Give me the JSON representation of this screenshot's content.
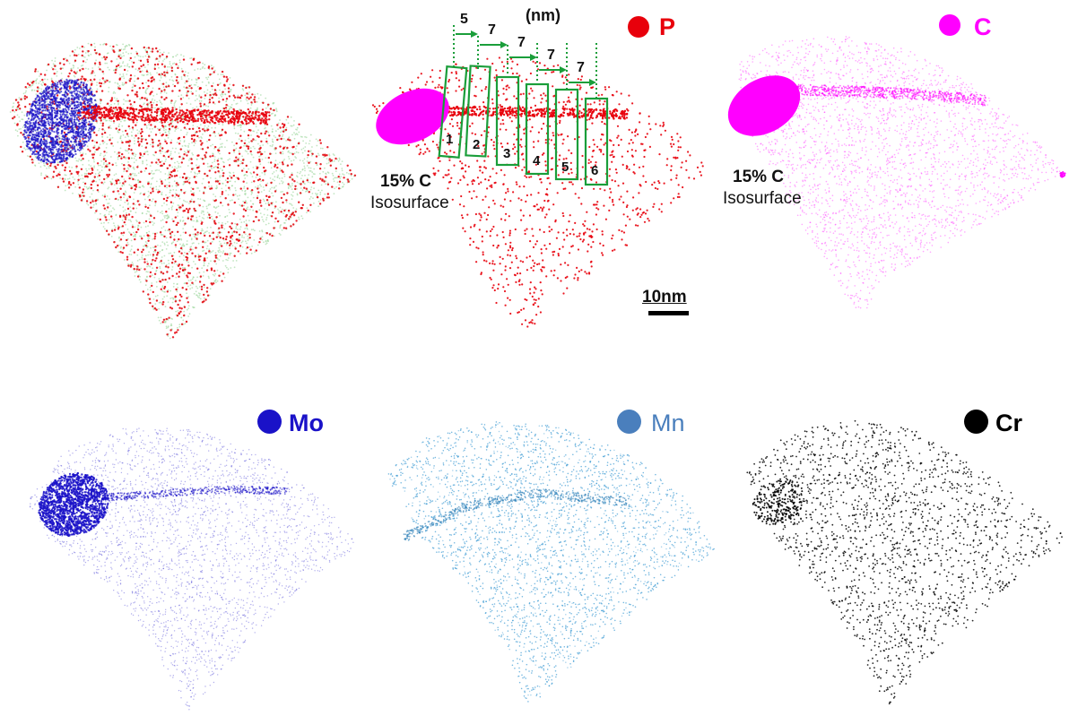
{
  "panels": [
    {
      "id": "overlay",
      "elements": [
        "P",
        "C",
        "Mo",
        "Mn",
        "Cr"
      ]
    },
    {
      "id": "P",
      "legend": "P",
      "color": "#e8000b",
      "isosurface": {
        "concentration": "15% C",
        "label": "Isosurface",
        "color": "#ff00ff"
      }
    },
    {
      "id": "C",
      "legend": "C",
      "color": "#ff00ff",
      "isosurface": {
        "concentration": "15% C",
        "label": "Isosurface",
        "color": "#ff00ff"
      }
    },
    {
      "id": "Mo",
      "legend": "Mo",
      "color": "#1a12c8"
    },
    {
      "id": "Mn",
      "legend": "Mn",
      "color": "#4a7fbd"
    },
    {
      "id": "Cr",
      "legend": "Cr",
      "color": "#000000"
    }
  ],
  "profile": {
    "unit_label": "(nm)",
    "spacings": [
      "5",
      "7",
      "7",
      "7",
      "7"
    ],
    "box_labels": [
      "1",
      "2",
      "3",
      "4",
      "5",
      "6"
    ],
    "color": "#1a9e3a"
  },
  "scale_bar": {
    "label": "10nm"
  }
}
